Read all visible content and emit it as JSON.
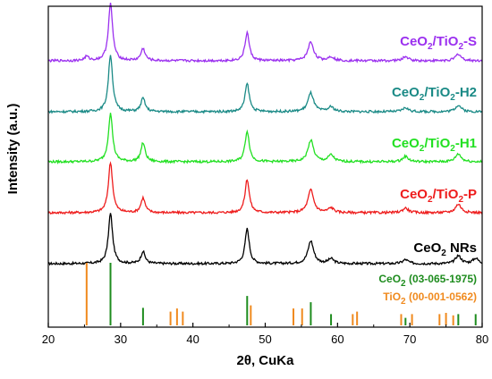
{
  "chart_data": {
    "type": "line",
    "title": "",
    "xlabel": "2θ, CuKa",
    "ylabel": "Intensity (a.u.)",
    "xlim": [
      20,
      80
    ],
    "x_ticks": [
      20,
      30,
      40,
      50,
      60,
      70,
      80
    ],
    "y_ticks": [],
    "grid": false,
    "legend": "labels placed beside each curve (right side)",
    "series": [
      {
        "name": "CeO2 NRs",
        "label_main": "CeO",
        "label_sub": "2",
        "label_rest": " NRs",
        "color": "#000000",
        "baseline": 0.0,
        "peaks": [
          {
            "x": 28.6,
            "h": 0.75
          },
          {
            "x": 33.1,
            "h": 0.18
          },
          {
            "x": 47.5,
            "h": 0.52
          },
          {
            "x": 56.3,
            "h": 0.34
          },
          {
            "x": 59.1,
            "h": 0.07
          },
          {
            "x": 69.4,
            "h": 0.06
          },
          {
            "x": 76.7,
            "h": 0.12
          },
          {
            "x": 79.1,
            "h": 0.08
          }
        ]
      },
      {
        "name": "CeO2/TiO2-P",
        "label_main": "CeO",
        "label_sub": "2",
        "label_mid": "/TiO",
        "label_sub2": "2",
        "label_rest": "-P",
        "color": "#ee1c1c",
        "baseline": 0.0,
        "peaks": [
          {
            "x": 28.6,
            "h": 0.75
          },
          {
            "x": 33.1,
            "h": 0.22
          },
          {
            "x": 47.5,
            "h": 0.5
          },
          {
            "x": 56.3,
            "h": 0.34
          },
          {
            "x": 59.1,
            "h": 0.07
          },
          {
            "x": 69.4,
            "h": 0.07
          },
          {
            "x": 76.7,
            "h": 0.13
          }
        ]
      },
      {
        "name": "CeO2/TiO2-H1",
        "label_main": "CeO",
        "label_sub": "2",
        "label_mid": "/TiO",
        "label_sub2": "2",
        "label_rest": "-H1",
        "color": "#22e022",
        "baseline": 0.0,
        "peaks": [
          {
            "x": 28.6,
            "h": 0.72
          },
          {
            "x": 33.1,
            "h": 0.28
          },
          {
            "x": 47.5,
            "h": 0.46
          },
          {
            "x": 56.3,
            "h": 0.32
          },
          {
            "x": 59.1,
            "h": 0.1
          },
          {
            "x": 69.4,
            "h": 0.08
          },
          {
            "x": 76.7,
            "h": 0.12
          }
        ]
      },
      {
        "name": "CeO2/TiO2-H2",
        "label_main": "CeO",
        "label_sub": "2",
        "label_mid": "/TiO",
        "label_sub2": "2",
        "label_rest": "-H2",
        "color": "#1a8a86",
        "baseline": 0.0,
        "peaks": [
          {
            "x": 28.6,
            "h": 0.85
          },
          {
            "x": 33.1,
            "h": 0.2
          },
          {
            "x": 47.5,
            "h": 0.42
          },
          {
            "x": 56.3,
            "h": 0.28
          },
          {
            "x": 59.1,
            "h": 0.07
          },
          {
            "x": 69.4,
            "h": 0.06
          },
          {
            "x": 76.7,
            "h": 0.1
          }
        ]
      },
      {
        "name": "CeO2/TiO2-S",
        "label_main": "CeO",
        "label_sub": "2",
        "label_mid": "/TiO",
        "label_sub2": "2",
        "label_rest": "-S",
        "color": "#9b30ef",
        "baseline": 0.0,
        "peaks": [
          {
            "x": 25.3,
            "h": 0.06
          },
          {
            "x": 28.6,
            "h": 0.85
          },
          {
            "x": 33.1,
            "h": 0.18
          },
          {
            "x": 47.5,
            "h": 0.42
          },
          {
            "x": 56.3,
            "h": 0.28
          },
          {
            "x": 59.1,
            "h": 0.06
          },
          {
            "x": 69.4,
            "h": 0.06
          },
          {
            "x": 76.7,
            "h": 0.1
          }
        ]
      }
    ],
    "reference_patterns": [
      {
        "name": "CeO2 (03-065-1975)",
        "label_main": "CeO",
        "label_sub": "2",
        "label_rest": " (03-065-1975)",
        "color": "#1e8c1e",
        "lines": [
          {
            "x": 28.6,
            "rel": 1.0
          },
          {
            "x": 33.1,
            "rel": 0.28
          },
          {
            "x": 47.5,
            "rel": 0.47
          },
          {
            "x": 56.3,
            "rel": 0.37
          },
          {
            "x": 59.1,
            "rel": 0.18
          },
          {
            "x": 69.4,
            "rel": 0.12
          },
          {
            "x": 76.7,
            "rel": 0.18
          },
          {
            "x": 79.1,
            "rel": 0.18
          }
        ]
      },
      {
        "name": "TiO2 (00-001-0562)",
        "label_main": "TiO",
        "label_sub": "2",
        "label_rest": " (00-001-0562)",
        "color": "#f08a1e",
        "lines": [
          {
            "x": 25.3,
            "rel": 1.0
          },
          {
            "x": 36.9,
            "rel": 0.22
          },
          {
            "x": 37.8,
            "rel": 0.27
          },
          {
            "x": 38.6,
            "rel": 0.22
          },
          {
            "x": 48.0,
            "rel": 0.32
          },
          {
            "x": 53.9,
            "rel": 0.27
          },
          {
            "x": 55.1,
            "rel": 0.27
          },
          {
            "x": 62.1,
            "rel": 0.18
          },
          {
            "x": 62.7,
            "rel": 0.22
          },
          {
            "x": 68.8,
            "rel": 0.18
          },
          {
            "x": 70.3,
            "rel": 0.18
          },
          {
            "x": 74.1,
            "rel": 0.18
          },
          {
            "x": 75.0,
            "rel": 0.2
          },
          {
            "x": 76.0,
            "rel": 0.16
          }
        ]
      }
    ]
  }
}
